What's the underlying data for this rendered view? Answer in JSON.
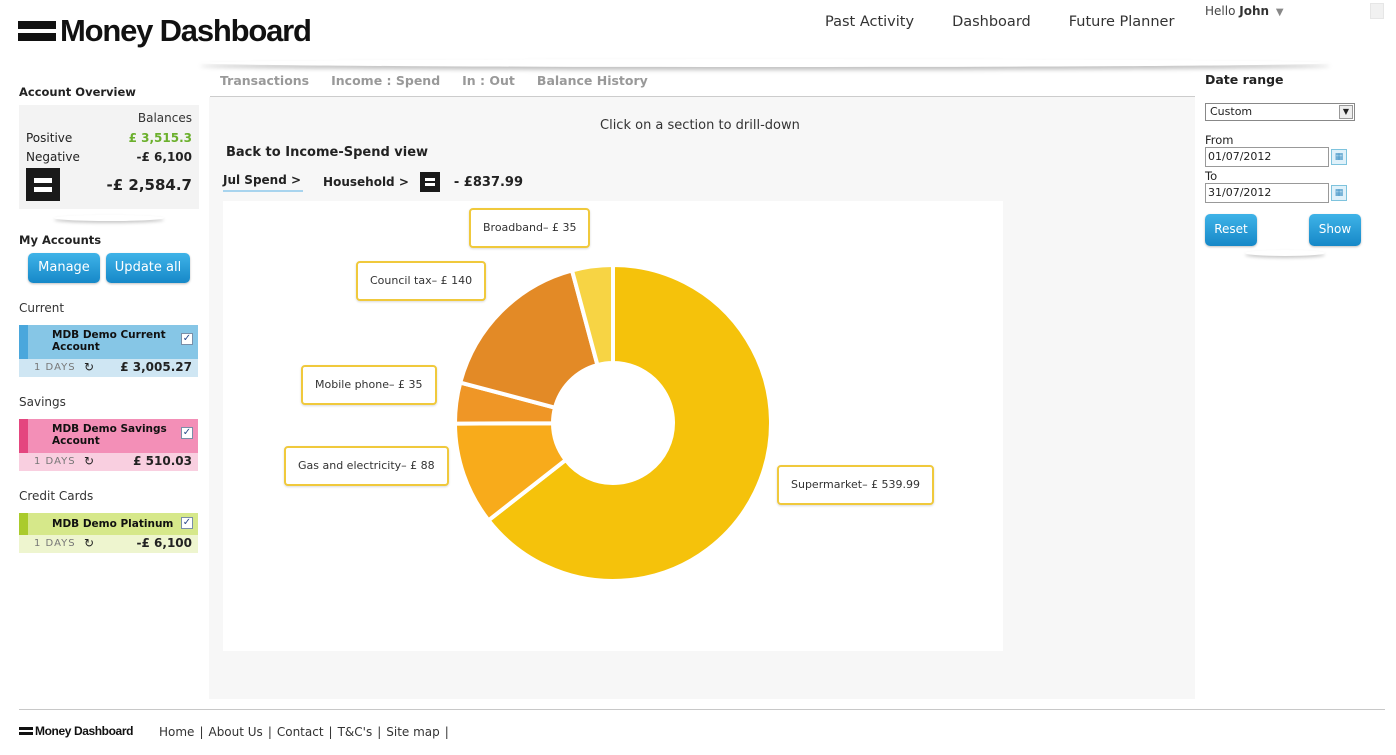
{
  "app": {
    "title": "Money Dashboard"
  },
  "topnav": [
    "Past Activity",
    "Dashboard",
    "Future Planner"
  ],
  "user": {
    "greeting": "Hello",
    "name": "John"
  },
  "overview": {
    "title": "Account Overview",
    "balances_label": "Balances",
    "positive_label": "Positive",
    "positive_value": "£ 3,515.3",
    "negative_label": "Negative",
    "negative_value": "-£ 6,100",
    "total": "-£ 2,584.7",
    "positive_color": "#6bb02c"
  },
  "my_accounts": {
    "title": "My Accounts",
    "manage_label": "Manage",
    "update_label": "Update all",
    "groups": [
      {
        "label": "Current",
        "name": "MDB Demo Current Account",
        "days": "1 DAYS",
        "amount": "£ 3,005.27",
        "bar": "#4aa7dc",
        "top": "#86c6e6",
        "bottom": "#cfe6f3"
      },
      {
        "label": "Savings",
        "name": "MDB Demo Savings Account",
        "days": "1 DAYS",
        "amount": "£ 510.03",
        "bar": "#e4467f",
        "top": "#f38fb7",
        "bottom": "#f9cfe0"
      },
      {
        "label": "Credit Cards",
        "name": "MDB Demo Platinum",
        "days": "1 DAYS",
        "amount": "-£ 6,100",
        "bar": "#aacb2c",
        "top": "#d6e88a",
        "bottom": "#eef5cf"
      }
    ]
  },
  "tabs": [
    "Transactions",
    "Income : Spend",
    "In : Out",
    "Balance History"
  ],
  "main": {
    "hint": "Click on a section to drill-down",
    "back_link": "Back to Income-Spend view",
    "crumb1": "Jul Spend >",
    "crumb2": "Household >",
    "crumb_amount": "- £837.99"
  },
  "chart_data": {
    "type": "pie",
    "donut": true,
    "title": "",
    "slices": [
      {
        "label": "Supermarket",
        "value": 539.99,
        "display": "Supermarket– £ 539.99",
        "color": "#f5c20b"
      },
      {
        "label": "Gas and electricity",
        "value": 88,
        "display": "Gas and electricity– £ 88",
        "color": "#f8ab1b"
      },
      {
        "label": "Mobile phone",
        "value": 35,
        "display": "Mobile phone– £ 35",
        "color": "#ef9626"
      },
      {
        "label": "Council tax",
        "value": 140,
        "display": "Council tax– £ 140",
        "color": "#e38a26"
      },
      {
        "label": "Broadband",
        "value": 35,
        "display": "Broadband– £ 35",
        "color": "#f7d444"
      }
    ]
  },
  "date_range": {
    "title": "Date range",
    "selected": "Custom",
    "from_label": "From",
    "from_value": "01/07/2012",
    "to_label": "To",
    "to_value": "31/07/2012",
    "reset_label": "Reset",
    "show_label": "Show"
  },
  "footer": {
    "logo": "Money Dashboard",
    "links": [
      "Home",
      "About Us",
      "Contact",
      "T&C's",
      "Site map"
    ]
  }
}
